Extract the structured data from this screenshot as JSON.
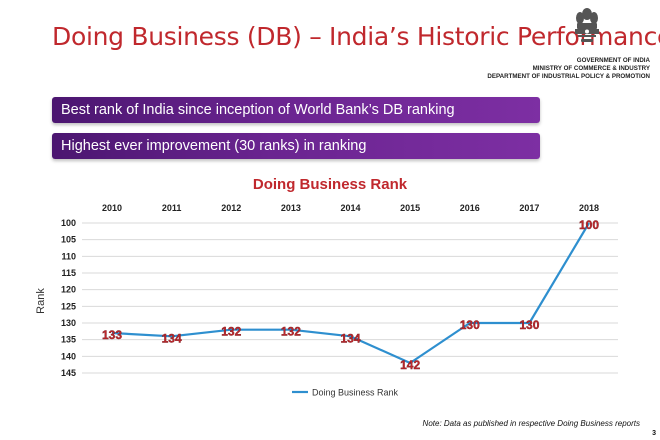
{
  "slide": {
    "title": "Doing Business (DB) – India’s Historic Performance",
    "org_lines": [
      "GOVERNMENT OF INDIA",
      "MINISTRY OF COMMERCE & INDUSTRY",
      "DEPARTMENT OF INDUSTRIAL POLICY & PROMOTION"
    ],
    "bullets": [
      "Best rank of India since inception of World Bank’s DB ranking",
      "Highest ever improvement (30 ranks) in ranking"
    ],
    "note": "Note: Data as published in respective Doing Business reports",
    "page_number": "3"
  },
  "colors": {
    "title_red": "#c0282d",
    "bar_purple": "#5a1d80",
    "line_blue": "#2e8fcf",
    "label_red": "#c0282d"
  },
  "chart_data": {
    "type": "line",
    "title": "Doing Business Rank",
    "ylabel": "Rank",
    "xlabel": "",
    "categories": [
      "2010",
      "2011",
      "2012",
      "2013",
      "2014",
      "2015",
      "2016",
      "2017",
      "2018"
    ],
    "series": [
      {
        "name": "Doing Business Rank",
        "values": [
          133,
          134,
          132,
          132,
          134,
          142,
          130,
          130,
          100
        ]
      }
    ],
    "y_ticks": [
      100,
      105,
      110,
      115,
      120,
      125,
      130,
      135,
      140,
      145
    ],
    "ylim": [
      100,
      145
    ],
    "y_inverted": true,
    "x_axis_position": "top",
    "grid": true,
    "legend": "bottom",
    "data_labels": true
  }
}
